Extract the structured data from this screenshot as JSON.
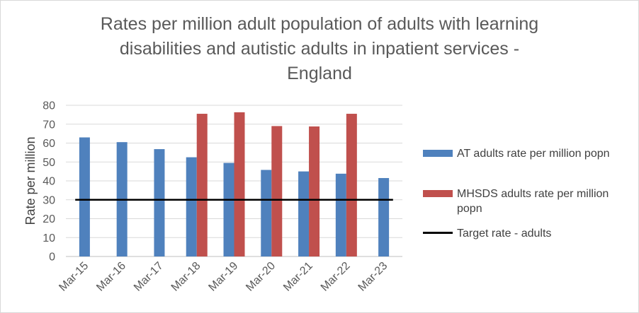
{
  "chart_data": {
    "type": "bar",
    "title_lines": [
      "Rates per million adult population of adults with learning",
      "disabilities and autistic adults in inpatient services -",
      "England"
    ],
    "xlabel": "",
    "ylabel": "Rate per million",
    "ylim": [
      0,
      80
    ],
    "yticks": [
      "0",
      "10",
      "20",
      "30",
      "40",
      "50",
      "60",
      "70",
      "80"
    ],
    "ytick_values": [
      0,
      10,
      20,
      30,
      40,
      50,
      60,
      70,
      80
    ],
    "categories": [
      "Mar-15",
      "Mar-16",
      "Mar-17",
      "Mar-18",
      "Mar-19",
      "Mar-20",
      "Mar-21",
      "Mar-22",
      "Mar-23"
    ],
    "series": [
      {
        "name": "AT adults rate per million popn",
        "color": "#4f81bd",
        "values": [
          63,
          60.5,
          56.8,
          52.5,
          49.5,
          45.8,
          45,
          43.8,
          41.5
        ]
      },
      {
        "name": "MHSDS adults rate per million popn",
        "color": "#c0504d",
        "values": [
          null,
          null,
          null,
          75.5,
          76.3,
          69,
          68.8,
          75.5,
          null
        ]
      }
    ],
    "target": {
      "name": "Target rate - adults",
      "value": 30,
      "color": "#000000"
    },
    "grid": true,
    "legend_position": "right"
  }
}
